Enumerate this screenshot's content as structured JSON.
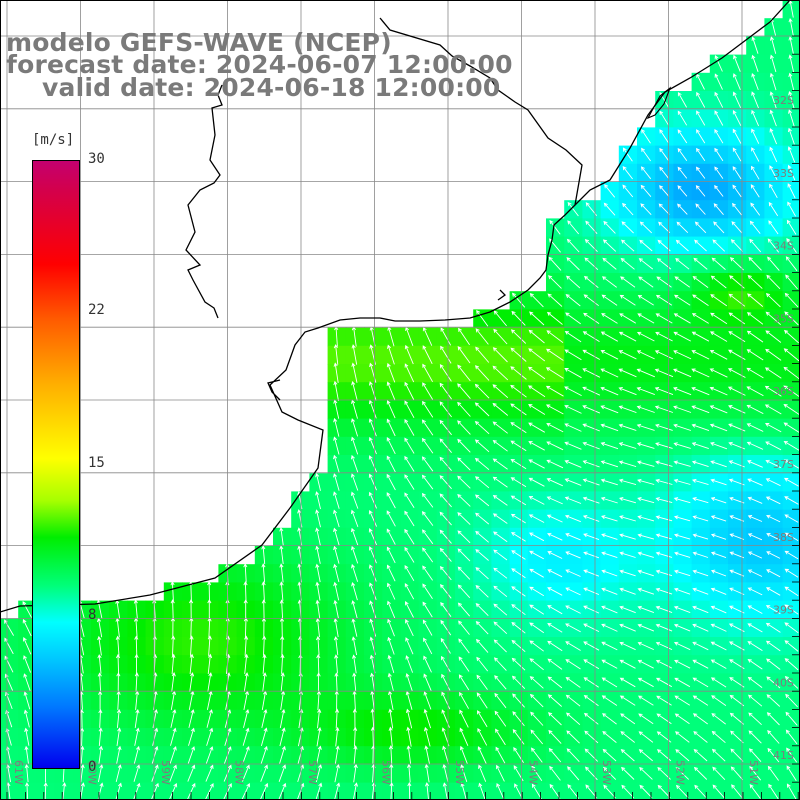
{
  "header": {
    "model_line": "modelo GEFS-WAVE (NCEP)",
    "forecast_line": "forecast date: 2024-06-07 12:00:00",
    "valid_line": "valid date: 2024-06-18 12:00:00"
  },
  "colorbar": {
    "unit": "[m/s]",
    "min": 0,
    "max": 30,
    "ticks": [
      "30",
      "22",
      "15",
      "8",
      "0"
    ],
    "colormap": "blue-cyan-green-yellow-red-magenta"
  },
  "map": {
    "variable": "wind speed with direction arrows",
    "lon_labels": [
      "61W",
      "60W",
      "59W",
      "58W",
      "57W",
      "56W",
      "55W",
      "54W",
      "53W",
      "52W",
      "51W"
    ],
    "lat_labels": [
      "32S",
      "33S",
      "34S",
      "35S",
      "36S",
      "37S",
      "38S",
      "39S",
      "40S",
      "41S"
    ],
    "grid_color": "#888888",
    "coastline_color": "#000000"
  }
}
